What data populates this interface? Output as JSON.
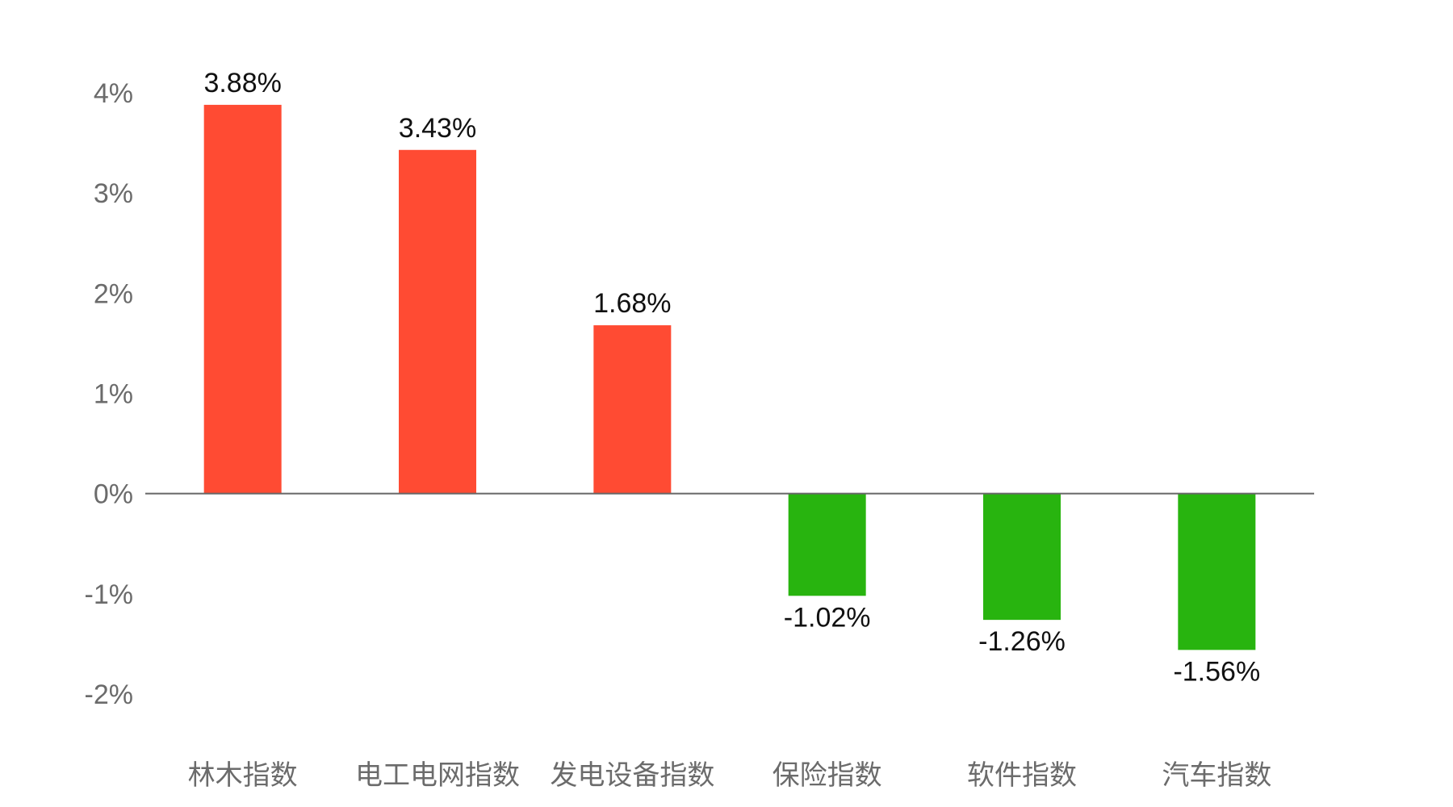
{
  "chart_data": {
    "type": "bar",
    "categories": [
      "林木指数",
      "电工电网指数",
      "发电设备指数",
      "保险指数",
      "软件指数",
      "汽车指数"
    ],
    "values": [
      3.88,
      3.43,
      1.68,
      -1.02,
      -1.26,
      -1.56
    ],
    "value_labels": [
      "3.88%",
      "3.43%",
      "1.68%",
      "-1.02%",
      "-1.26%",
      "-1.56%"
    ],
    "y_ticks": [
      4,
      3,
      2,
      1,
      0,
      -1,
      -2
    ],
    "y_tick_labels": [
      "4%",
      "3%",
      "2%",
      "1%",
      "0%",
      "-1%",
      "-2%"
    ],
    "ylim": [
      -2,
      4
    ],
    "grid": false,
    "legend": "none",
    "colors": {
      "positive": "#ff4b33",
      "negative": "#28b40f",
      "axis": "#666666"
    }
  }
}
